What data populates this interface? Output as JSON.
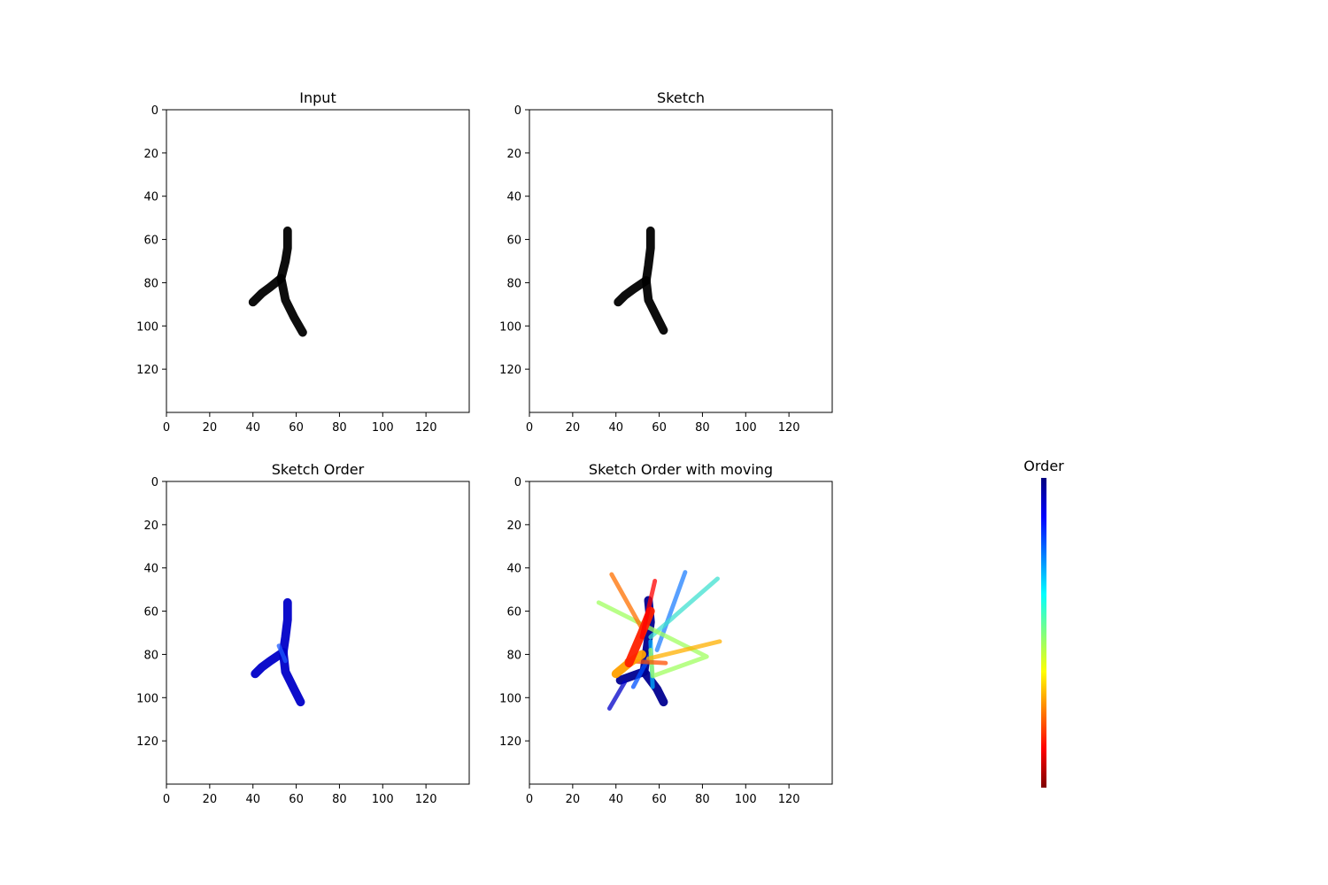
{
  "chart_data": [
    {
      "type": "image",
      "title": "Input",
      "xlim": [
        0,
        140
      ],
      "ylim": [
        140,
        0
      ],
      "xticks": [
        0,
        20,
        40,
        60,
        80,
        100,
        120
      ],
      "yticks": [
        0,
        20,
        40,
        60,
        80,
        100,
        120
      ],
      "grid": false,
      "strokes": [
        {
          "color": "#000000",
          "width": 4,
          "points": [
            [
              56,
              56
            ],
            [
              56,
              64
            ],
            [
              55,
              70
            ],
            [
              53,
              78
            ]
          ]
        },
        {
          "color": "#000000",
          "width": 4,
          "points": [
            [
              53,
              78
            ],
            [
              48,
              82
            ],
            [
              44,
              85
            ],
            [
              40,
              89
            ]
          ]
        },
        {
          "color": "#000000",
          "width": 4,
          "points": [
            [
              53,
              78
            ],
            [
              55,
              88
            ],
            [
              59,
              96
            ],
            [
              63,
              103
            ]
          ]
        }
      ]
    },
    {
      "type": "image",
      "title": "Sketch",
      "xlim": [
        0,
        140
      ],
      "ylim": [
        140,
        0
      ],
      "xticks": [
        0,
        20,
        40,
        60,
        80,
        100,
        120
      ],
      "yticks": [
        0,
        20,
        40,
        60,
        80,
        100,
        120
      ],
      "grid": false,
      "strokes": [
        {
          "color": "#000000",
          "width": 4,
          "points": [
            [
              56,
              56
            ],
            [
              56,
              64
            ],
            [
              55,
              72
            ],
            [
              54,
              79
            ]
          ]
        },
        {
          "color": "#000000",
          "width": 4,
          "points": [
            [
              54,
              79
            ],
            [
              48,
              83
            ],
            [
              44,
              86
            ],
            [
              41,
              89
            ]
          ]
        },
        {
          "color": "#000000",
          "width": 4,
          "points": [
            [
              54,
              79
            ],
            [
              55,
              88
            ],
            [
              59,
              96
            ],
            [
              62,
              102
            ]
          ]
        }
      ]
    },
    {
      "type": "image",
      "title": "Sketch Order",
      "xlim": [
        0,
        140
      ],
      "ylim": [
        140,
        0
      ],
      "xticks": [
        0,
        20,
        40,
        60,
        80,
        100,
        120
      ],
      "yticks": [
        0,
        20,
        40,
        60,
        80,
        100,
        120
      ],
      "grid": false,
      "strokes": [
        {
          "color": "#0000c8",
          "width": 4,
          "points": [
            [
              56,
              56
            ],
            [
              56,
              64
            ],
            [
              55,
              72
            ],
            [
              54,
              79
            ]
          ]
        },
        {
          "color": "#0000c8",
          "width": 4,
          "points": [
            [
              54,
              79
            ],
            [
              48,
              83
            ],
            [
              44,
              86
            ],
            [
              41,
              89
            ]
          ]
        },
        {
          "color": "#0000c8",
          "width": 4,
          "points": [
            [
              54,
              79
            ],
            [
              55,
              88
            ],
            [
              59,
              96
            ],
            [
              62,
              102
            ]
          ]
        },
        {
          "color": "#1e5aff",
          "width": 2,
          "points": [
            [
              52,
              76
            ],
            [
              55,
              83
            ]
          ]
        }
      ]
    },
    {
      "type": "image",
      "title": "Sketch Order with moving",
      "xlim": [
        0,
        140
      ],
      "ylim": [
        140,
        0
      ],
      "xticks": [
        0,
        20,
        40,
        60,
        80,
        100,
        120
      ],
      "yticks": [
        0,
        20,
        40,
        60,
        80,
        100,
        120
      ],
      "grid": false,
      "strokes": [
        {
          "color": "#000090",
          "width": 4,
          "points": [
            [
              55,
              55
            ],
            [
              56,
              65
            ],
            [
              54,
              80
            ]
          ]
        },
        {
          "color": "#000090",
          "width": 4,
          "points": [
            [
              54,
              80
            ],
            [
              53,
              88
            ],
            [
              42,
              92
            ]
          ]
        },
        {
          "color": "#000090",
          "width": 4,
          "points": [
            [
              53,
              88
            ],
            [
              59,
              96
            ],
            [
              62,
              102
            ]
          ]
        },
        {
          "color": "#0000c8",
          "width": 2,
          "points": [
            [
              37,
              105
            ],
            [
              44,
              93
            ]
          ]
        },
        {
          "color": "#0050ff",
          "width": 2,
          "points": [
            [
              48,
              95
            ],
            [
              56,
              80
            ]
          ]
        },
        {
          "color": "#2080ff",
          "width": 2,
          "points": [
            [
              59,
              78
            ],
            [
              72,
              42
            ]
          ]
        },
        {
          "color": "#00b0ff",
          "width": 2,
          "points": [
            [
              57,
              95
            ],
            [
              56,
              74
            ]
          ]
        },
        {
          "color": "#40e0d0",
          "width": 2,
          "points": [
            [
              56,
              72
            ],
            [
              87,
              45
            ]
          ]
        },
        {
          "color": "#a0ff60",
          "width": 2,
          "points": [
            [
              32,
              56
            ],
            [
              82,
              81
            ],
            [
              57,
              90
            ],
            [
              56,
              78
            ]
          ]
        },
        {
          "color": "#ffb000",
          "width": 2,
          "points": [
            [
              55,
              82
            ],
            [
              88,
              74
            ]
          ]
        },
        {
          "color": "#ff7000",
          "width": 2,
          "points": [
            [
              38,
              43
            ],
            [
              52,
              68
            ]
          ]
        },
        {
          "color": "#ff5000",
          "width": 2,
          "points": [
            [
              45,
              83
            ],
            [
              63,
              84
            ]
          ]
        },
        {
          "color": "#ffa000",
          "width": 4,
          "points": [
            [
              40,
              89
            ],
            [
              46,
              84
            ],
            [
              52,
              80
            ]
          ]
        },
        {
          "color": "#ff2000",
          "width": 4,
          "points": [
            [
              46,
              84
            ],
            [
              52,
              70
            ],
            [
              56,
              60
            ]
          ]
        },
        {
          "color": "#ff0000",
          "width": 2,
          "points": [
            [
              52,
              72
            ],
            [
              58,
              46
            ]
          ]
        }
      ]
    },
    {
      "type": "colorbar",
      "title": "Order",
      "colormap": "jet",
      "colors_top_to_bottom": [
        "#00007f",
        "#0000ff",
        "#007fff",
        "#00ffff",
        "#7fff7f",
        "#ffff00",
        "#ff7f00",
        "#ff0000",
        "#7f0000"
      ],
      "ticks": []
    }
  ]
}
